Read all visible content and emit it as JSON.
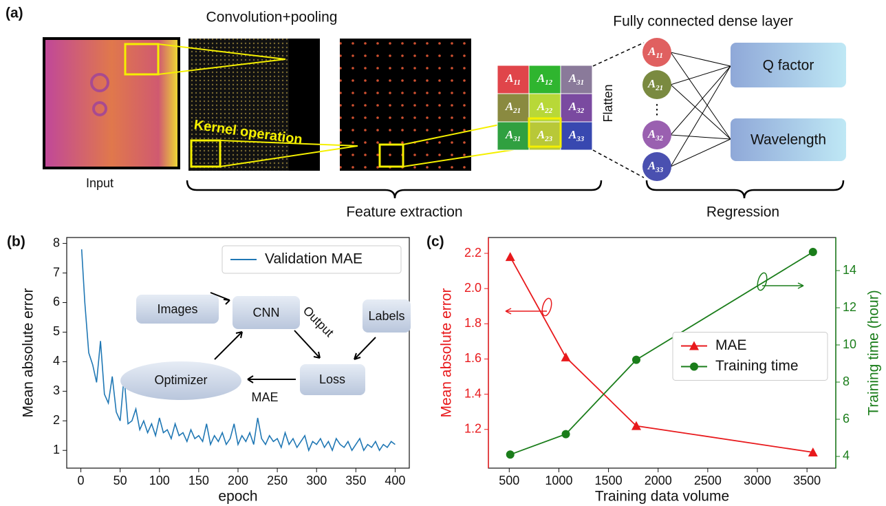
{
  "diagram": {
    "panel_label": "(a)",
    "conv_title": "Convolution+pooling",
    "dense_title": "Fully connected dense layer",
    "input_label": "Input",
    "kernel_label": "Kernel operation",
    "flatten_label": "Flatten",
    "matrix": [
      [
        {
          "base": "A",
          "sub": "11"
        },
        {
          "base": "A",
          "sub": "12"
        },
        {
          "base": "A",
          "sub": "31"
        }
      ],
      [
        {
          "base": "A",
          "sub": "21"
        },
        {
          "base": "A",
          "sub": "22"
        },
        {
          "base": "A",
          "sub": "32"
        }
      ],
      [
        {
          "base": "A",
          "sub": "31"
        },
        {
          "base": "A",
          "sub": "23"
        },
        {
          "base": "A",
          "sub": "33"
        }
      ]
    ],
    "nodes": [
      {
        "base": "A",
        "sub": "11"
      },
      {
        "base": "A",
        "sub": "21"
      },
      {
        "base": "A",
        "sub": "32"
      },
      {
        "base": "A",
        "sub": "33"
      }
    ],
    "outputs": [
      "Q factor",
      "Wavelength"
    ],
    "feature_label": "Feature extraction",
    "regression_label": "Regression"
  },
  "chart_data": [
    {
      "type": "line",
      "panel_label": "(b)",
      "xlabel": "epoch",
      "ylabel": "Mean absolute error",
      "x": [
        1,
        5,
        10,
        15,
        20,
        25,
        30,
        35,
        40,
        45,
        50,
        55,
        60,
        65,
        70,
        75,
        80,
        85,
        90,
        95,
        100,
        105,
        110,
        115,
        120,
        125,
        130,
        135,
        140,
        145,
        150,
        155,
        160,
        165,
        170,
        175,
        180,
        185,
        190,
        195,
        200,
        205,
        210,
        215,
        220,
        225,
        230,
        235,
        240,
        245,
        250,
        255,
        260,
        265,
        270,
        275,
        280,
        285,
        290,
        295,
        300,
        305,
        310,
        315,
        320,
        325,
        330,
        335,
        340,
        345,
        350,
        355,
        360,
        365,
        370,
        375,
        380,
        385,
        390,
        395,
        400
      ],
      "series": [
        {
          "name": "Validation MAE",
          "color": "#1f77b4",
          "values": [
            7.8,
            6.0,
            4.3,
            3.9,
            3.3,
            4.7,
            2.9,
            2.6,
            3.5,
            2.3,
            2.0,
            3.5,
            1.9,
            2.0,
            2.4,
            1.7,
            2.0,
            1.6,
            1.9,
            1.5,
            2.1,
            1.6,
            1.7,
            1.4,
            1.9,
            1.5,
            1.6,
            1.3,
            1.7,
            1.4,
            1.5,
            1.3,
            1.9,
            1.2,
            1.5,
            1.3,
            1.6,
            1.2,
            1.4,
            1.9,
            1.2,
            1.5,
            1.3,
            1.6,
            1.2,
            2.1,
            1.4,
            1.2,
            1.5,
            1.3,
            1.4,
            1.1,
            1.6,
            1.2,
            1.4,
            1.1,
            1.3,
            1.5,
            1.0,
            1.3,
            1.2,
            1.4,
            1.1,
            1.3,
            1.0,
            1.4,
            1.2,
            1.1,
            1.3,
            1.0,
            1.2,
            1.4,
            1.0,
            1.2,
            1.1,
            1.3,
            1.0,
            1.2,
            1.1,
            1.3,
            1.2
          ]
        }
      ],
      "xlim": [
        -18,
        418
      ],
      "xticks": [
        0,
        50,
        100,
        150,
        200,
        250,
        300,
        350,
        400
      ],
      "ylim": [
        0.4,
        8.2
      ],
      "yticks": [
        1,
        2,
        3,
        4,
        5,
        6,
        7,
        8
      ],
      "legend": "upper right",
      "annotations": {
        "images": "Images",
        "cnn": "CNN",
        "labels": "Labels",
        "output": "Output",
        "loss": "Loss",
        "optimizer": "Optimizer",
        "mae": "MAE"
      }
    },
    {
      "type": "line",
      "panel_label": "(c)",
      "xlabel": "Training data volume",
      "ylabel": "Mean absolute error",
      "y2label": "Training time (hour)",
      "x": [
        510,
        1070,
        1780,
        3560
      ],
      "series": [
        {
          "name": "MAE",
          "color": "#e8191c",
          "marker": "triangle",
          "values": [
            2.18,
            1.61,
            1.22,
            1.07
          ]
        },
        {
          "name": "Training time",
          "color": "#1a7d1a",
          "marker": "circle",
          "axis": "y2",
          "values": [
            4.1,
            5.2,
            9.2,
            15.0
          ]
        }
      ],
      "xlim": [
        290,
        3790
      ],
      "xticks": [
        500,
        1000,
        1500,
        2000,
        2500,
        3000,
        3500
      ],
      "ylim": [
        0.98,
        2.29
      ],
      "yticks": [
        1.2,
        1.4,
        1.6,
        1.8,
        {
          "value": 2,
          "label": "2.0"
        },
        2.2
      ],
      "y2lim": [
        3.37,
        15.78
      ],
      "y2ticks": [
        4,
        6,
        8,
        10,
        12,
        14
      ],
      "legend": "center right"
    }
  ]
}
